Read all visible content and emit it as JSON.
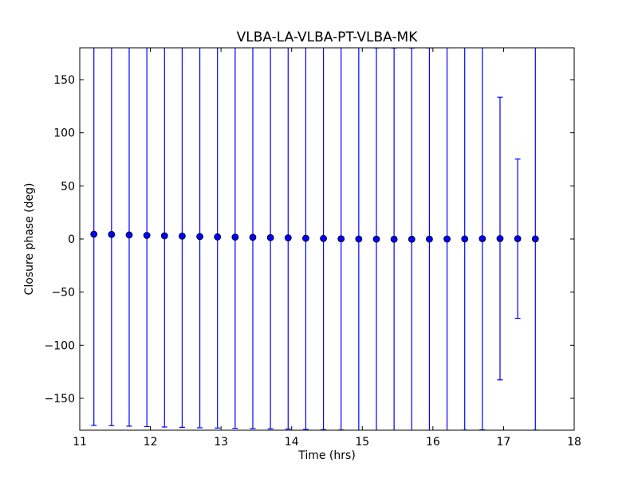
{
  "chart_data": {
    "type": "scatter",
    "title": "VLBA-LA-VLBA-PT-VLBA-MK",
    "xlabel": "Time (hrs)",
    "ylabel": "Closure phase (deg)",
    "xlim": [
      11,
      18
    ],
    "ylim": [
      -180,
      180
    ],
    "xticks": [
      11,
      12,
      13,
      14,
      15,
      16,
      17,
      18
    ],
    "yticks": [
      -150,
      -100,
      -50,
      0,
      50,
      100,
      150
    ],
    "grid": false,
    "series": [
      {
        "color": "#0000ff",
        "points": [
          {
            "x": 11.2,
            "y": 4.5,
            "err": 180
          },
          {
            "x": 11.45,
            "y": 4.3,
            "err": 180
          },
          {
            "x": 11.7,
            "y": 3.8,
            "err": 180
          },
          {
            "x": 11.95,
            "y": 3.4,
            "err": 180
          },
          {
            "x": 12.2,
            "y": 3.0,
            "err": 180
          },
          {
            "x": 12.45,
            "y": 2.7,
            "err": 180
          },
          {
            "x": 12.7,
            "y": 2.3,
            "err": 180
          },
          {
            "x": 12.95,
            "y": 2.0,
            "err": 180
          },
          {
            "x": 13.2,
            "y": 1.8,
            "err": 180
          },
          {
            "x": 13.45,
            "y": 1.6,
            "err": 180
          },
          {
            "x": 13.7,
            "y": 1.3,
            "err": 180
          },
          {
            "x": 13.95,
            "y": 1.1,
            "err": 180
          },
          {
            "x": 14.2,
            "y": 0.7,
            "err": 180
          },
          {
            "x": 14.45,
            "y": 0.5,
            "err": 180
          },
          {
            "x": 14.7,
            "y": 0.2,
            "err": 180
          },
          {
            "x": 14.95,
            "y": 0.0,
            "err": 180
          },
          {
            "x": 15.2,
            "y": -0.1,
            "err": 180
          },
          {
            "x": 15.45,
            "y": -0.2,
            "err": 180
          },
          {
            "x": 15.7,
            "y": -0.2,
            "err": 180
          },
          {
            "x": 15.95,
            "y": -0.1,
            "err": 180
          },
          {
            "x": 16.2,
            "y": 0.0,
            "err": 180
          },
          {
            "x": 16.45,
            "y": 0.1,
            "err": 180
          },
          {
            "x": 16.7,
            "y": 0.3,
            "err": 180
          },
          {
            "x": 16.95,
            "y": 0.4,
            "err": 133
          },
          {
            "x": 17.2,
            "y": 0.3,
            "err": 75
          },
          {
            "x": 17.45,
            "y": 0.1,
            "err": 180
          }
        ]
      }
    ]
  }
}
